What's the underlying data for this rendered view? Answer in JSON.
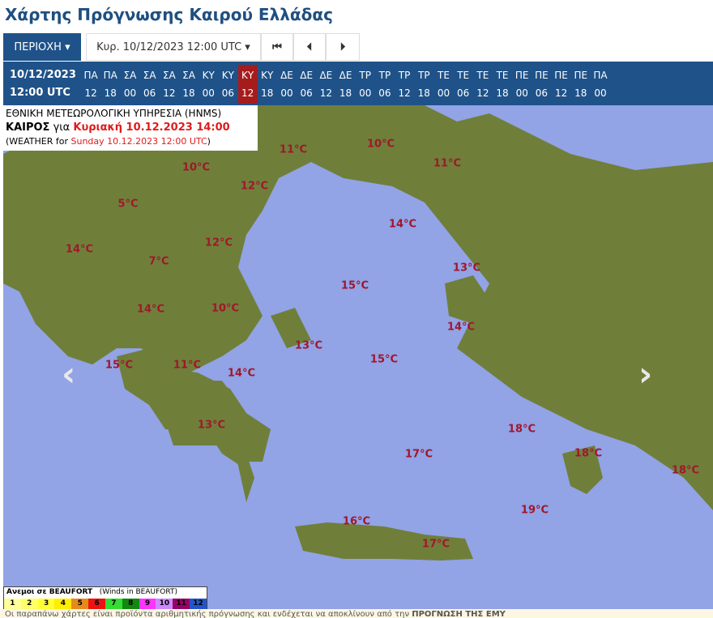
{
  "title": "Χάρτης Πρόγνωσης Καιρού Ελλάδας",
  "toolbar": {
    "region_label": "ΠΕΡΙΟΧΗ ▾",
    "date_label": "Κυρ. 10/12/2023 12:00 UTC ▾",
    "first_icon": "skip-to-start-icon",
    "prev_icon": "step-back-icon",
    "next_icon": "step-forward-icon",
    "first": "⏮",
    "prev": "⏴",
    "next": "⏵"
  },
  "timebar": {
    "date": "10/12/2023",
    "time": "12:00 UTC",
    "selected_index": 8,
    "slots": [
      [
        "ΠΑ",
        "12"
      ],
      [
        "ΠΑ",
        "18"
      ],
      [
        "ΣΑ",
        "00"
      ],
      [
        "ΣΑ",
        "06"
      ],
      [
        "ΣΑ",
        "12"
      ],
      [
        "ΣΑ",
        "18"
      ],
      [
        "ΚΥ",
        "00"
      ],
      [
        "ΚΥ",
        "06"
      ],
      [
        "ΚΥ",
        "12"
      ],
      [
        "ΚΥ",
        "18"
      ],
      [
        "ΔΕ",
        "00"
      ],
      [
        "ΔΕ",
        "06"
      ],
      [
        "ΔΕ",
        "12"
      ],
      [
        "ΔΕ",
        "18"
      ],
      [
        "ΤΡ",
        "00"
      ],
      [
        "ΤΡ",
        "06"
      ],
      [
        "ΤΡ",
        "12"
      ],
      [
        "ΤΡ",
        "18"
      ],
      [
        "ΤΕ",
        "00"
      ],
      [
        "ΤΕ",
        "06"
      ],
      [
        "ΤΕ",
        "12"
      ],
      [
        "ΤΕ",
        "18"
      ],
      [
        "ΠΕ",
        "00"
      ],
      [
        "ΠΕ",
        "06"
      ],
      [
        "ΠΕ",
        "12"
      ],
      [
        "ΠΕ",
        "18"
      ],
      [
        "ΠΑ",
        "00"
      ]
    ]
  },
  "info": {
    "agency": "ΕΘΝΙΚΗ ΜΕΤΕΩΡΟΛΟΓΙΚΗ ΥΠΗΡΕΣΙΑ (HNMS)",
    "weather_label": "ΚΑΙΡΟΣ",
    "for": " για ",
    "local_time": "Κυριακή 10.12.2023 14:00",
    "en_prefix": "(WEATHER for ",
    "en_time": "Sunday 10.12.2023 12:00 UTC",
    "en_suffix": ")"
  },
  "temperatures": [
    "11°C",
    "10°C",
    "11°C",
    "10°C",
    "12°C",
    "5°C",
    "14°C",
    "12°C",
    "14°C",
    "7°C",
    "13°C",
    "15°C",
    "14°C",
    "10°C",
    "14°C",
    "13°C",
    "15°C",
    "15°C",
    "11°C",
    "14°C",
    "13°C",
    "18°C",
    "17°C",
    "18°C",
    "18°C",
    "19°C",
    "16°C",
    "17°C"
  ],
  "colors": {
    "sea": "#92a3e6",
    "land": "#6f7f3a",
    "header": "#1f5289",
    "selected": "#a61c1c",
    "temp": "#a0172c"
  },
  "legend": {
    "title": "Ανεμοι σε BEAUFORT",
    "title_en": "(Winds in BEAUFORT)",
    "levels": [
      {
        "v": "1",
        "c": "#ffff99"
      },
      {
        "v": "2",
        "c": "#ffff66"
      },
      {
        "v": "3",
        "c": "#ffff33"
      },
      {
        "v": "4",
        "c": "#ffee00"
      },
      {
        "v": "5",
        "c": "#e88a1a"
      },
      {
        "v": "6",
        "c": "#ee1111"
      },
      {
        "v": "7",
        "c": "#33dd33"
      },
      {
        "v": "8",
        "c": "#118811"
      },
      {
        "v": "9",
        "c": "#ff33ff"
      },
      {
        "v": "10",
        "c": "#cc88ff"
      },
      {
        "v": "11",
        "c": "#990066"
      },
      {
        "v": "12",
        "c": "#2255cc"
      }
    ]
  },
  "map_nav": {
    "prev": "‹",
    "next": "›"
  },
  "footer": {
    "text": "Οι παραπάνω χάρτες είναι προϊόντα αριθμητικής πρόγνωσης και ενδέχεται να αποκλίνουν από την ",
    "bold": "ΠΡΟΓΝΩΣΗ ΤΗΣ ΕΜΥ"
  }
}
